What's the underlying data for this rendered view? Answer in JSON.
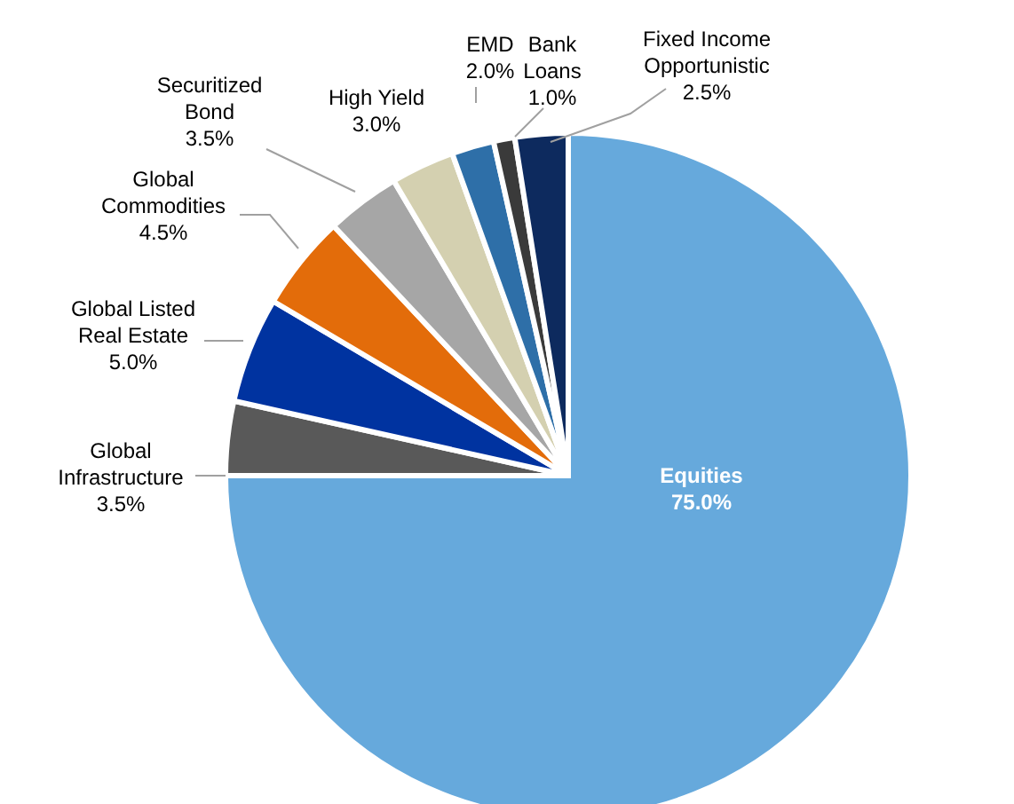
{
  "chart_data": {
    "type": "pie",
    "categories": [
      "Equities",
      "Global Infrastructure",
      "Global Listed Real Estate",
      "Global Commodities",
      "Securitized Bond",
      "High Yield",
      "EMD",
      "Bank Loans",
      "Fixed Income Opportunistic"
    ],
    "values": [
      75,
      3.5,
      5,
      4.5,
      3.5,
      3,
      2,
      1,
      2.5
    ],
    "value_labels": [
      "75.0%",
      "3.5%",
      "5.0%",
      "4.5%",
      "3.5%",
      "3.0%",
      "2.0%",
      "1.0%",
      "2.5%"
    ],
    "colors": [
      "#66a9dc",
      "#595959",
      "#0033a0",
      "#e36c0a",
      "#a6a6a6",
      "#d4d0b0",
      "#2e6fa8",
      "#3a3a3a",
      "#0d2a5e"
    ]
  }
}
